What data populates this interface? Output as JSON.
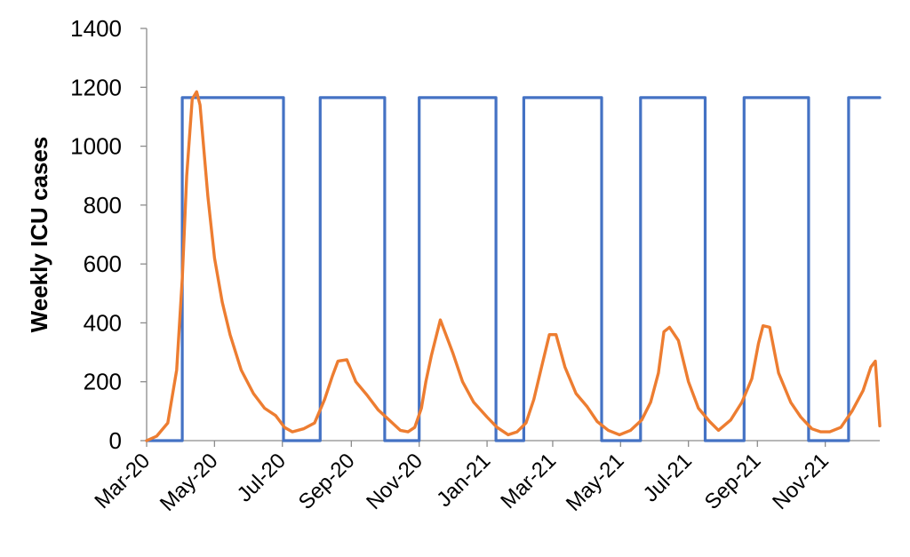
{
  "chart_data": {
    "type": "line",
    "title": "",
    "xlabel": "",
    "ylabel": "Weekly ICU cases",
    "ylim": [
      0,
      1400
    ],
    "yticks": [
      0,
      200,
      400,
      600,
      800,
      1000,
      1200,
      1400
    ],
    "xlim": [
      "2020-03-01",
      "2021-12-20"
    ],
    "xticks": [
      "2020-03-01",
      "2020-05-01",
      "2020-07-01",
      "2020-09-01",
      "2020-11-01",
      "2021-01-01",
      "2021-03-01",
      "2021-05-01",
      "2021-07-01",
      "2021-09-01",
      "2021-11-01"
    ],
    "xtick_labels": [
      "Mar-20",
      "May-20",
      "Jul-20",
      "Sep-20",
      "Nov-20",
      "Jan-21",
      "Mar-21",
      "May-21",
      "Jul-21",
      "Sep-21",
      "Nov-21"
    ],
    "grid": false,
    "legend": "none",
    "series": [
      {
        "color": "#4472C4",
        "style": "step",
        "x": [
          "2020-03-01",
          "2020-04-02",
          "2020-04-02",
          "2020-07-02",
          "2020-07-02",
          "2020-08-04",
          "2020-08-04",
          "2020-10-01",
          "2020-10-01",
          "2020-11-01",
          "2020-11-01",
          "2021-01-09",
          "2021-01-09",
          "2021-02-03",
          "2021-02-03",
          "2021-04-14",
          "2021-04-14",
          "2021-05-19",
          "2021-05-19",
          "2021-07-16",
          "2021-07-16",
          "2021-08-20",
          "2021-08-20",
          "2021-10-17",
          "2021-10-17",
          "2021-11-22",
          "2021-11-22",
          "2021-12-20"
        ],
        "values": [
          0,
          0,
          1165,
          1165,
          0,
          0,
          1165,
          1165,
          0,
          0,
          1165,
          1165,
          0,
          0,
          1165,
          1165,
          0,
          0,
          1165,
          1165,
          0,
          0,
          1165,
          1165,
          0,
          0,
          1165,
          1165
        ]
      },
      {
        "color": "#ED7D31",
        "style": "line",
        "x": [
          "2020-03-01",
          "2020-03-10",
          "2020-03-20",
          "2020-03-28",
          "2020-04-02",
          "2020-04-06",
          "2020-04-11",
          "2020-04-15",
          "2020-04-18",
          "2020-04-25",
          "2020-05-01",
          "2020-05-08",
          "2020-05-15",
          "2020-05-25",
          "2020-06-05",
          "2020-06-15",
          "2020-06-25",
          "2020-07-03",
          "2020-07-10",
          "2020-07-20",
          "2020-07-30",
          "2020-08-08",
          "2020-08-15",
          "2020-08-20",
          "2020-08-28",
          "2020-09-05",
          "2020-09-15",
          "2020-09-25",
          "2020-10-05",
          "2020-10-15",
          "2020-10-22",
          "2020-10-28",
          "2020-11-03",
          "2020-11-07",
          "2020-11-12",
          "2020-11-20",
          "2020-12-01",
          "2020-12-10",
          "2020-12-20",
          "2021-01-01",
          "2021-01-10",
          "2021-01-20",
          "2021-01-28",
          "2021-02-05",
          "2021-02-12",
          "2021-02-19",
          "2021-02-26",
          "2021-03-04",
          "2021-03-12",
          "2021-03-22",
          "2021-04-01",
          "2021-04-10",
          "2021-04-20",
          "2021-04-30",
          "2021-05-10",
          "2021-05-20",
          "2021-05-28",
          "2021-06-04",
          "2021-06-09",
          "2021-06-14",
          "2021-06-22",
          "2021-07-01",
          "2021-07-10",
          "2021-07-20",
          "2021-07-28",
          "2021-08-08",
          "2021-08-18",
          "2021-08-27",
          "2021-09-02",
          "2021-09-06",
          "2021-09-12",
          "2021-09-20",
          "2021-10-01",
          "2021-10-10",
          "2021-10-20",
          "2021-10-28",
          "2021-11-05",
          "2021-11-15",
          "2021-11-25",
          "2021-12-05",
          "2021-12-12",
          "2021-12-16",
          "2021-12-20"
        ],
        "values": [
          0,
          15,
          60,
          240,
          550,
          900,
          1160,
          1185,
          1140,
          830,
          620,
          470,
          360,
          240,
          160,
          110,
          85,
          45,
          30,
          40,
          60,
          140,
          220,
          270,
          275,
          200,
          155,
          105,
          70,
          35,
          30,
          45,
          110,
          200,
          290,
          410,
          300,
          200,
          130,
          80,
          45,
          20,
          30,
          60,
          140,
          250,
          360,
          360,
          250,
          160,
          115,
          65,
          35,
          20,
          35,
          70,
          130,
          230,
          370,
          385,
          340,
          200,
          110,
          65,
          35,
          70,
          130,
          210,
          330,
          390,
          385,
          230,
          130,
          80,
          40,
          30,
          30,
          45,
          100,
          170,
          250,
          270,
          50
        ]
      }
    ]
  }
}
